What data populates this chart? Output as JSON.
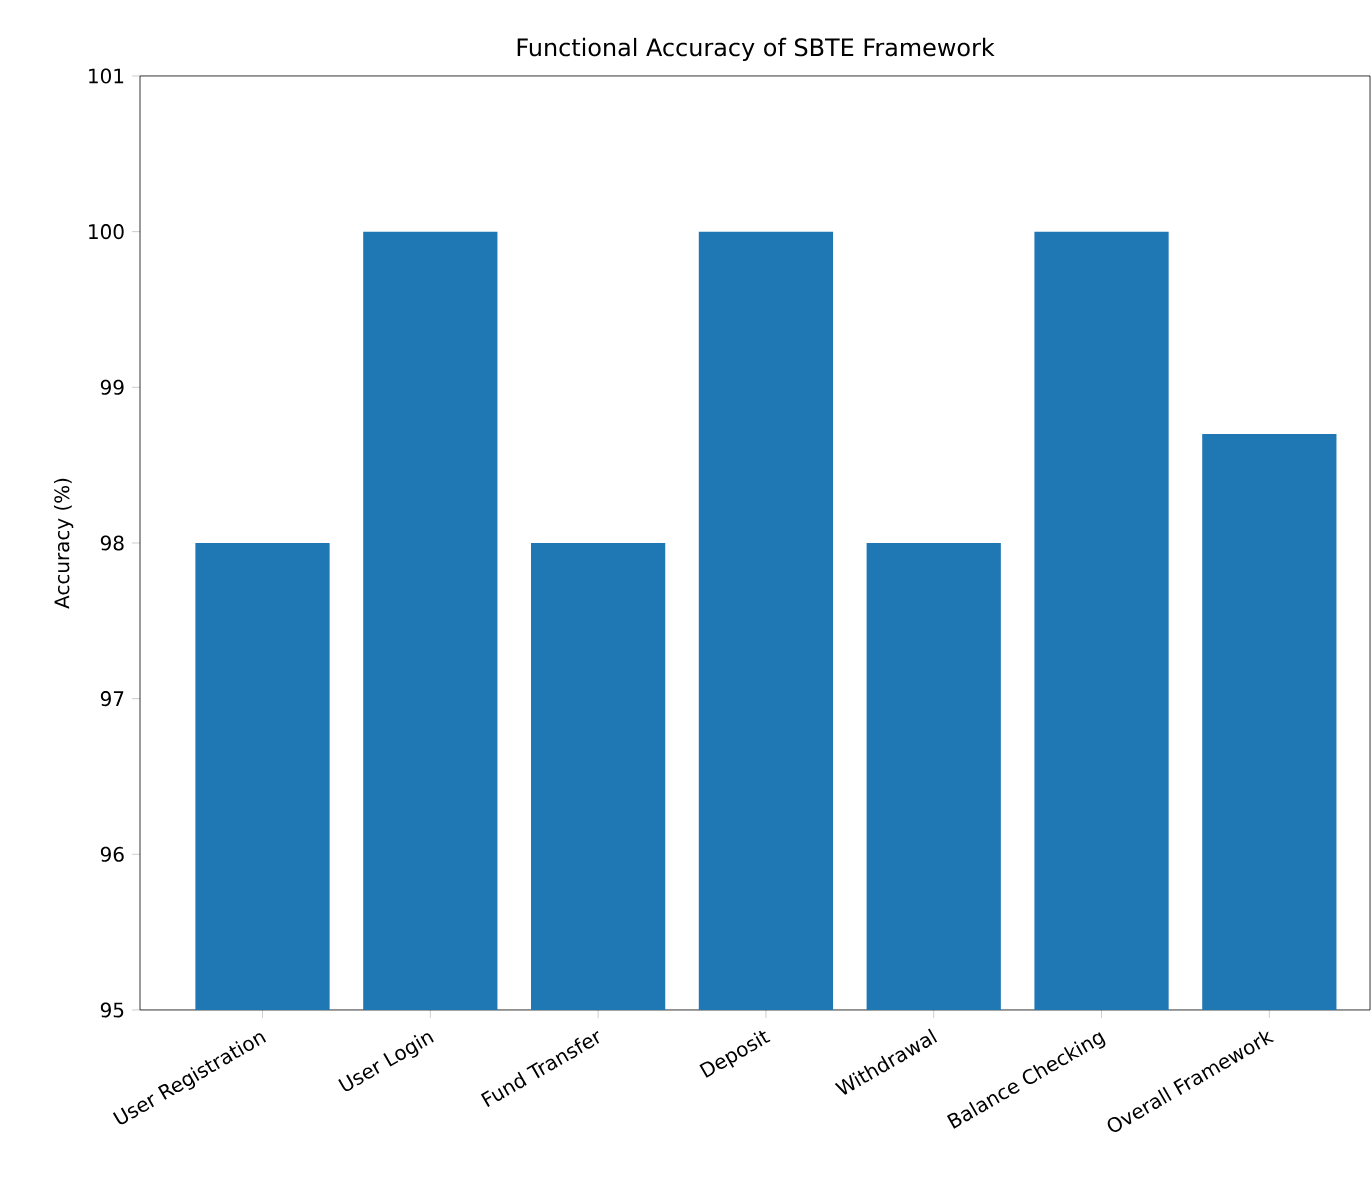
{
  "chart_data": {
    "type": "bar",
    "title": "Functional Accuracy of SBTE Framework",
    "ylabel": "Accuracy (%)",
    "categories": [
      "User Registration",
      "User Login",
      "Fund Transfer",
      "Deposit",
      "Withdrawal",
      "Balance Checking",
      "Overall Framework"
    ],
    "values": [
      98,
      100,
      98,
      100,
      98,
      100,
      98.7
    ],
    "color": "#1f77b4",
    "ylim": [
      95,
      101
    ],
    "yticks": [
      95,
      96,
      97,
      98,
      99,
      100,
      101
    ]
  }
}
